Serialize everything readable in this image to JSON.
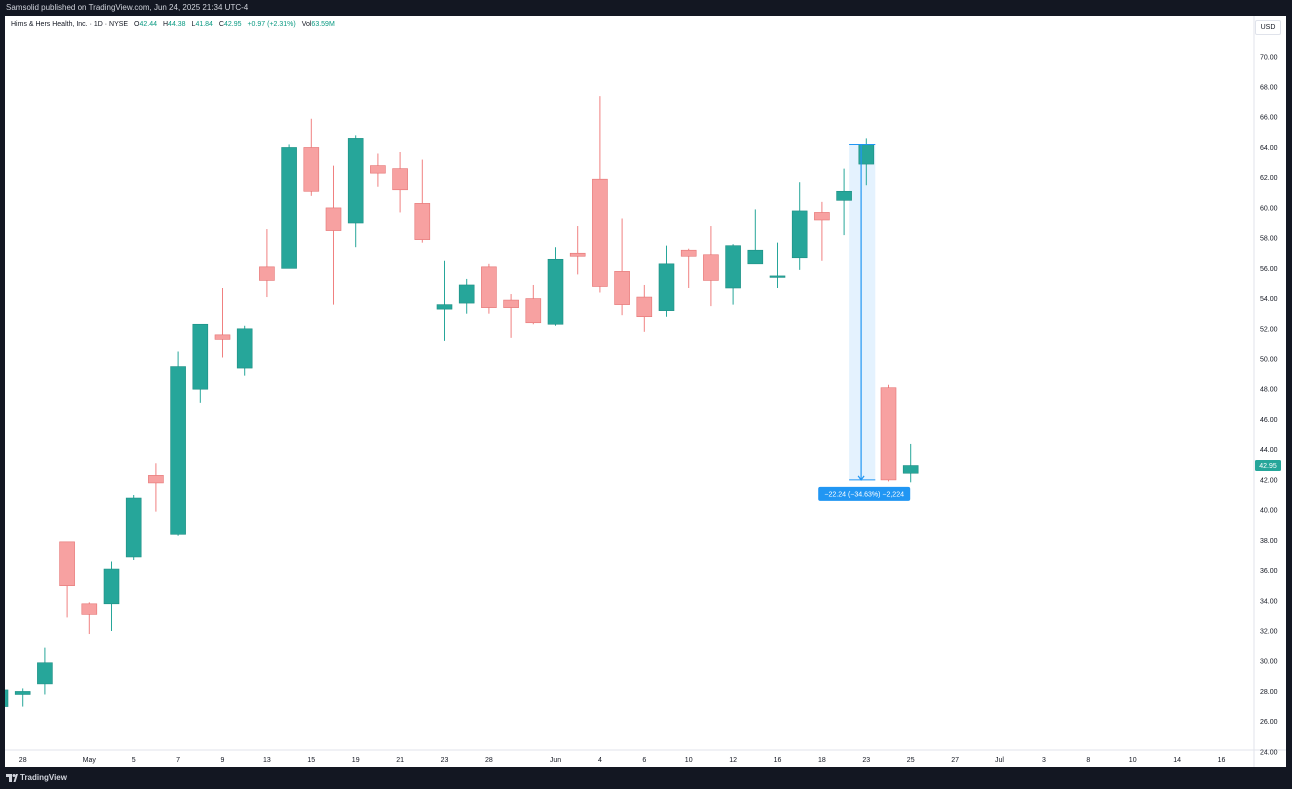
{
  "header": {
    "text": "Samsolid published on TradingView.com, Jun 24, 2025 21:34 UTC-4"
  },
  "legend": {
    "symbol": "Hims & Hers Health, Inc. · 1D · NYSE",
    "open_label": "O",
    "open": "42.44",
    "high_label": "H",
    "high": "44.38",
    "low_label": "L",
    "low": "41.84",
    "close_label": "C",
    "close": "42.95",
    "change": "+0.97 (+2.31%)",
    "vol_label": "Vol",
    "vol": "63.59M"
  },
  "currency": "USD",
  "footer": {
    "brand": "TradingView"
  },
  "colors": {
    "up": "#26a69a",
    "down": "#f7a1a1",
    "up_wick": "#26a69a",
    "down_wick": "#f08080",
    "measure": "#2196f3"
  },
  "chart_data": {
    "type": "candlestick",
    "ylim": [
      23,
      72.7
    ],
    "y_ticks": [
      "24.00",
      "26.00",
      "28.00",
      "30.00",
      "32.00",
      "34.00",
      "36.00",
      "38.00",
      "40.00",
      "42.00",
      "44.00",
      "46.00",
      "48.00",
      "50.00",
      "52.00",
      "54.00",
      "56.00",
      "58.00",
      "60.00",
      "62.00",
      "64.00",
      "66.00",
      "68.00",
      "70.00"
    ],
    "x_ticks": [
      {
        "label": "28",
        "i": 1
      },
      {
        "label": "May",
        "i": 4
      },
      {
        "label": "5",
        "i": 6
      },
      {
        "label": "7",
        "i": 8
      },
      {
        "label": "9",
        "i": 10
      },
      {
        "label": "13",
        "i": 12
      },
      {
        "label": "15",
        "i": 14
      },
      {
        "label": "19",
        "i": 16
      },
      {
        "label": "21",
        "i": 18
      },
      {
        "label": "23",
        "i": 20
      },
      {
        "label": "28",
        "i": 22
      },
      {
        "label": "Jun",
        "i": 25
      },
      {
        "label": "4",
        "i": 27
      },
      {
        "label": "6",
        "i": 29
      },
      {
        "label": "10",
        "i": 31
      },
      {
        "label": "12",
        "i": 33
      },
      {
        "label": "16",
        "i": 35
      },
      {
        "label": "18",
        "i": 37
      },
      {
        "label": "23",
        "i": 39
      },
      {
        "label": "25",
        "i": 41
      },
      {
        "label": "27",
        "i": 43
      },
      {
        "label": "Jul",
        "i": 45
      },
      {
        "label": "3",
        "i": 47
      },
      {
        "label": "8",
        "i": 49
      },
      {
        "label": "10",
        "i": 51
      },
      {
        "label": "14",
        "i": 53
      },
      {
        "label": "16",
        "i": 55
      }
    ],
    "candles": [
      {
        "o": 27.0,
        "h": 28.4,
        "l": 27.0,
        "c": 28.1
      },
      {
        "o": 27.8,
        "h": 28.2,
        "l": 27.0,
        "c": 28.0
      },
      {
        "o": 28.5,
        "h": 30.9,
        "l": 27.8,
        "c": 29.9
      },
      {
        "o": 37.9,
        "h": 37.9,
        "l": 32.9,
        "c": 35.0
      },
      {
        "o": 33.8,
        "h": 33.9,
        "l": 31.8,
        "c": 33.1
      },
      {
        "o": 33.8,
        "h": 36.6,
        "l": 32.0,
        "c": 36.1
      },
      {
        "o": 36.9,
        "h": 41.0,
        "l": 36.7,
        "c": 40.8
      },
      {
        "o": 42.3,
        "h": 43.1,
        "l": 39.9,
        "c": 41.8
      },
      {
        "o": 38.4,
        "h": 50.5,
        "l": 38.3,
        "c": 49.5
      },
      {
        "o": 48.0,
        "h": 52.3,
        "l": 47.1,
        "c": 52.3
      },
      {
        "o": 51.6,
        "h": 54.7,
        "l": 50.1,
        "c": 51.3
      },
      {
        "o": 49.4,
        "h": 52.2,
        "l": 48.9,
        "c": 52.0
      },
      {
        "o": 56.1,
        "h": 58.6,
        "l": 54.1,
        "c": 55.2
      },
      {
        "o": 56.0,
        "h": 64.2,
        "l": 56.0,
        "c": 64.0
      },
      {
        "o": 64.0,
        "h": 65.9,
        "l": 60.8,
        "c": 61.1
      },
      {
        "o": 60.0,
        "h": 62.8,
        "l": 53.6,
        "c": 58.5
      },
      {
        "o": 59.0,
        "h": 64.8,
        "l": 57.4,
        "c": 64.6
      },
      {
        "o": 62.8,
        "h": 63.6,
        "l": 61.4,
        "c": 62.3
      },
      {
        "o": 62.6,
        "h": 63.7,
        "l": 59.7,
        "c": 61.2
      },
      {
        "o": 60.3,
        "h": 63.2,
        "l": 57.7,
        "c": 57.9
      },
      {
        "o": 53.3,
        "h": 56.5,
        "l": 51.2,
        "c": 53.6
      },
      {
        "o": 53.7,
        "h": 55.3,
        "l": 53.0,
        "c": 54.9
      },
      {
        "o": 56.1,
        "h": 56.3,
        "l": 53.0,
        "c": 53.4
      },
      {
        "o": 53.9,
        "h": 54.3,
        "l": 51.4,
        "c": 53.4
      },
      {
        "o": 54.0,
        "h": 54.9,
        "l": 52.3,
        "c": 52.4
      },
      {
        "o": 52.3,
        "h": 57.4,
        "l": 52.2,
        "c": 56.6
      },
      {
        "o": 57.0,
        "h": 58.8,
        "l": 55.6,
        "c": 56.8
      },
      {
        "o": 61.9,
        "h": 67.4,
        "l": 54.4,
        "c": 54.8
      },
      {
        "o": 55.8,
        "h": 59.3,
        "l": 52.9,
        "c": 53.6
      },
      {
        "o": 54.1,
        "h": 54.9,
        "l": 51.8,
        "c": 52.8
      },
      {
        "o": 53.2,
        "h": 57.5,
        "l": 52.8,
        "c": 56.3
      },
      {
        "o": 57.2,
        "h": 57.3,
        "l": 54.7,
        "c": 56.8
      },
      {
        "o": 56.9,
        "h": 58.8,
        "l": 53.5,
        "c": 55.2
      },
      {
        "o": 54.7,
        "h": 57.6,
        "l": 53.6,
        "c": 57.5
      },
      {
        "o": 56.3,
        "h": 59.9,
        "l": 56.3,
        "c": 57.2
      },
      {
        "o": 55.4,
        "h": 57.7,
        "l": 54.7,
        "c": 55.5
      },
      {
        "o": 56.7,
        "h": 61.7,
        "l": 55.9,
        "c": 59.8
      },
      {
        "o": 59.7,
        "h": 60.4,
        "l": 56.5,
        "c": 59.2
      },
      {
        "o": 60.5,
        "h": 62.6,
        "l": 58.2,
        "c": 61.1
      },
      {
        "o": 62.9,
        "h": 64.6,
        "l": 61.5,
        "c": 64.2
      },
      {
        "o": 48.1,
        "h": 48.3,
        "l": 41.9,
        "c": 42.0
      },
      {
        "o": 42.44,
        "h": 44.38,
        "l": 41.84,
        "c": 42.95
      }
    ],
    "last_price": "42.95",
    "measure": {
      "from_index": 38,
      "to_index": 39,
      "from_price": 64.2,
      "to_price": 42.0,
      "label": "−22.24 (−34.63%) −2,224"
    }
  }
}
